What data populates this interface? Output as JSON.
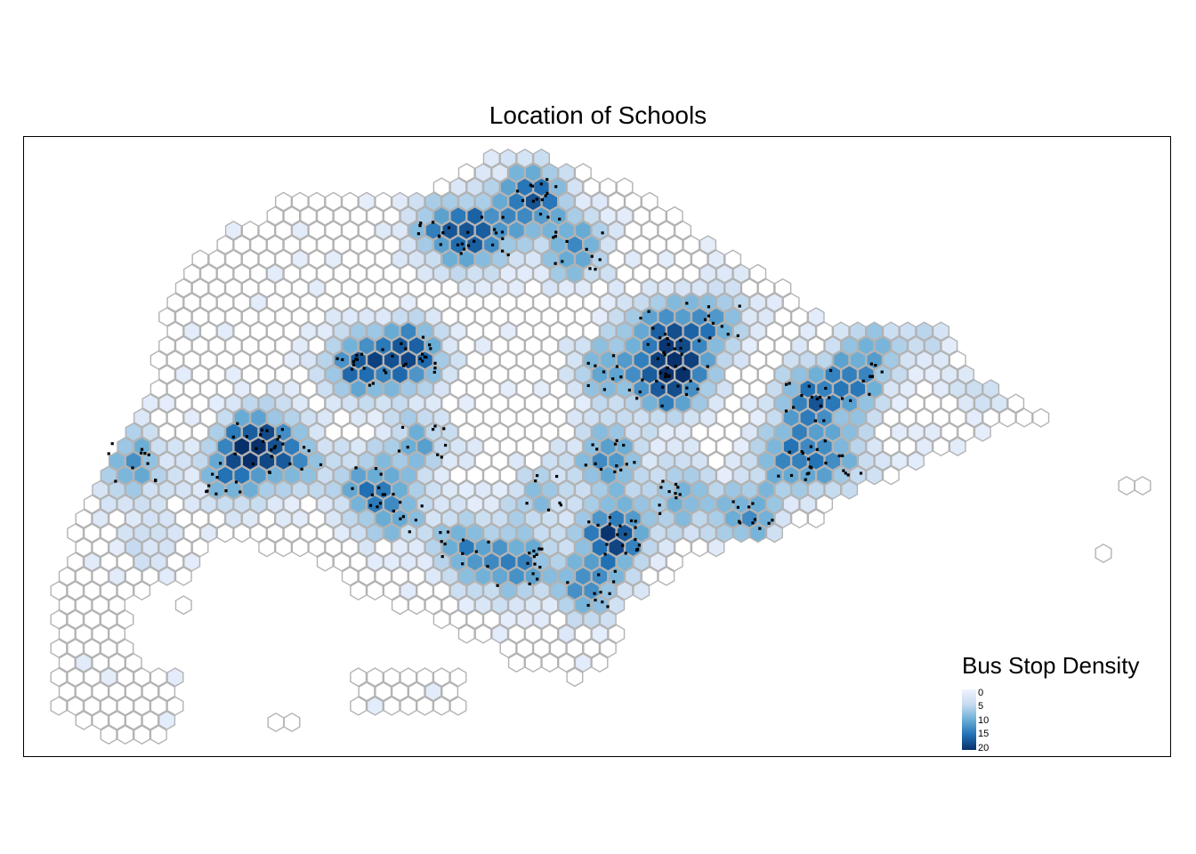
{
  "title": "Location of Schools",
  "legend": {
    "title": "Bus Stop Density",
    "ticks": [
      "0",
      "5",
      "10",
      "15",
      "20"
    ],
    "colors": [
      "#eff3ff",
      "#c6dbef",
      "#6baed6",
      "#2171b5",
      "#08306b"
    ],
    "range": [
      0,
      20
    ]
  },
  "style": {
    "hex_outline": "#b3b3b3",
    "school_marker": "#000000",
    "frame": "#000000"
  },
  "layers": [
    "hexagon-grid",
    "school-points"
  ]
}
